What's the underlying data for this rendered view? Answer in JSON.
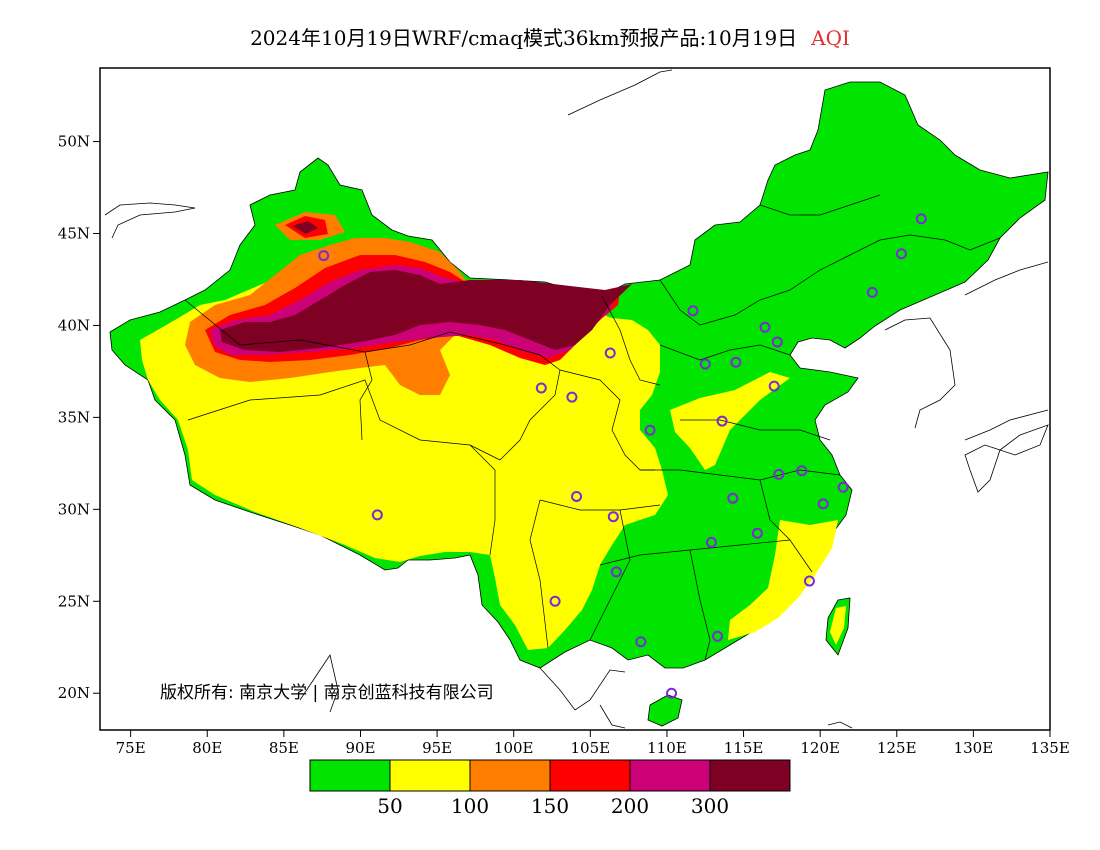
{
  "title": {
    "text": "2024年10月19日WRF/cmaq模式36km预报产品:10月19日",
    "variable": "AQI",
    "variable_color": "#e03030"
  },
  "axes": {
    "lon_ticks": [
      "75E",
      "80E",
      "85E",
      "90E",
      "95E",
      "100E",
      "105E",
      "110E",
      "115E",
      "120E",
      "125E",
      "130E",
      "135E"
    ],
    "lat_ticks": [
      "50N",
      "45N",
      "40N",
      "35N",
      "30N",
      "25N",
      "20N"
    ],
    "lon_range": [
      73,
      135
    ],
    "lat_range": [
      18,
      54
    ]
  },
  "copyright": "版权所有: 南京大学 | 南京创蓝科技有限公司",
  "legend": {
    "colors": [
      "#00e400",
      "#ffff00",
      "#ff7e00",
      "#ff0000",
      "#cc0077",
      "#7e0023"
    ],
    "labels": [
      "50",
      "100",
      "150",
      "200",
      "300"
    ]
  },
  "stations": [
    {
      "lon": 87.6,
      "lat": 43.8
    },
    {
      "lon": 91.1,
      "lat": 29.7
    },
    {
      "lon": 101.8,
      "lat": 36.6
    },
    {
      "lon": 103.8,
      "lat": 36.1
    },
    {
      "lon": 106.3,
      "lat": 38.5
    },
    {
      "lon": 111.7,
      "lat": 40.8
    },
    {
      "lon": 116.4,
      "lat": 39.9
    },
    {
      "lon": 117.2,
      "lat": 39.1
    },
    {
      "lon": 112.5,
      "lat": 37.9
    },
    {
      "lon": 114.5,
      "lat": 38.0
    },
    {
      "lon": 117.0,
      "lat": 36.7
    },
    {
      "lon": 108.9,
      "lat": 34.3
    },
    {
      "lon": 113.6,
      "lat": 34.8
    },
    {
      "lon": 104.1,
      "lat": 30.7
    },
    {
      "lon": 106.5,
      "lat": 29.6
    },
    {
      "lon": 114.3,
      "lat": 30.6
    },
    {
      "lon": 117.3,
      "lat": 31.9
    },
    {
      "lon": 118.8,
      "lat": 32.1
    },
    {
      "lon": 120.2,
      "lat": 30.3
    },
    {
      "lon": 121.5,
      "lat": 31.2
    },
    {
      "lon": 112.9,
      "lat": 28.2
    },
    {
      "lon": 115.9,
      "lat": 28.7
    },
    {
      "lon": 119.3,
      "lat": 26.1
    },
    {
      "lon": 106.7,
      "lat": 26.6
    },
    {
      "lon": 102.7,
      "lat": 25.0
    },
    {
      "lon": 108.3,
      "lat": 22.8
    },
    {
      "lon": 113.3,
      "lat": 23.1
    },
    {
      "lon": 110.3,
      "lat": 20.0
    },
    {
      "lon": 123.4,
      "lat": 41.8
    },
    {
      "lon": 125.3,
      "lat": 43.9
    },
    {
      "lon": 126.6,
      "lat": 45.8
    }
  ]
}
